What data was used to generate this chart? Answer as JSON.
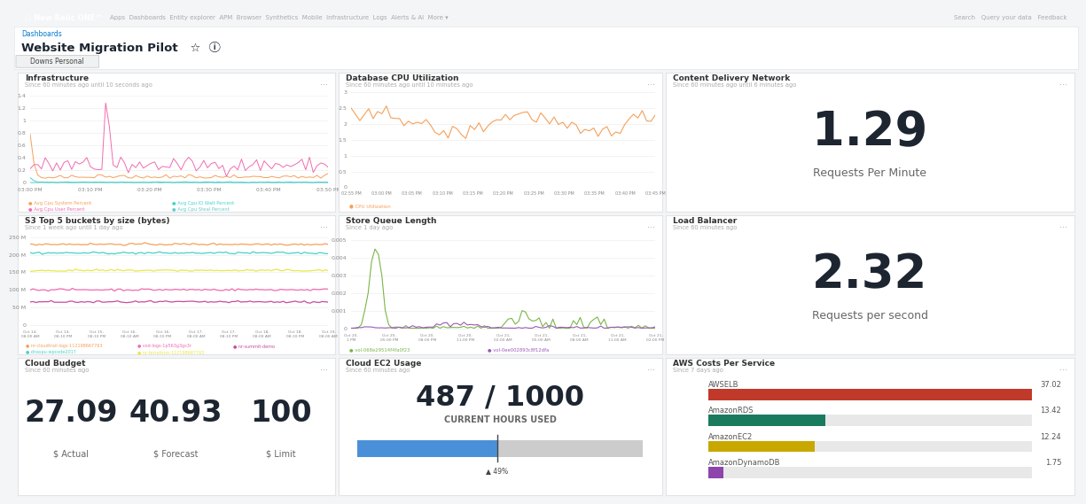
{
  "navbar_color": "#1c2b39",
  "panel_bg": "#ffffff",
  "panel_border": "#e3e4e6",
  "fig_bg": "#f4f5f7",
  "title": "Website Migration Pilot",
  "subtitle": "Downs Personal",
  "infra_title": "Infrastructure",
  "infra_subtitle": "Since 60 minutes ago until 10 seconds ago",
  "infra_xticks": [
    "03:00 PM",
    "03:10 PM",
    "03:20 PM",
    "03:30 PM",
    "03:40 PM",
    "03:50 PM"
  ],
  "infra_yticks": [
    "0",
    "0.2",
    "0.4",
    "0.6",
    "0.8",
    "1",
    "1.2",
    "1.4"
  ],
  "infra_legend": [
    "Avg Cpu System Percent",
    "Avg Cpu IO Wait Percent",
    "Avg Cpu User Percent",
    "Avg Cpu Steal Percent"
  ],
  "infra_colors": [
    "#f5a05a",
    "#44d4c8",
    "#f06cb0",
    "#66cccc"
  ],
  "db_title": "Database CPU Utilization",
  "db_subtitle": "Since 60 minutes ago until 10 minutes ago",
  "db_xticks": [
    "02:55 PM",
    "03:00 PM",
    "03:05 PM",
    "03:10 PM",
    "03:15 PM",
    "03:20 PM",
    "03:25 PM",
    "03:30 PM",
    "03:35 PM",
    "03:40 PM",
    "03:45 PM"
  ],
  "db_yticks": [
    "0",
    "0.5",
    "1",
    "1.5",
    "2",
    "2.5",
    "3"
  ],
  "db_color": "#f5a05a",
  "db_legend": "CPU Utilization",
  "cdn_title": "Content Delivery Network",
  "cdn_subtitle": "Since 60 minutes ago until 6 minutes ago",
  "cdn_value": "1.29",
  "cdn_label": "Requests Per Minute",
  "s3_title": "S3 Top 5 buckets by size (bytes)",
  "s3_subtitle": "Since 1 week ago until 1 day ago",
  "s3_xticks": [
    "Oct 14,\n08:00 AM",
    "Oct 14,\n08:10 PM",
    "Oct 15,\n08:10 PM",
    "Oct 16,\n08:10 AM",
    "Oct 16,\n08:10 PM",
    "Oct 17,\n08:00 AM",
    "Oct 17,\n08:10 PM",
    "Oct 18,\n08:00 AM",
    "Oct 18,\n08:10 PM",
    "Oct 19,\n08:00 AM"
  ],
  "s3_yticks": [
    "0",
    "50 M",
    "100 M",
    "150 M",
    "200 M",
    "250 M"
  ],
  "s3_colors": [
    "#f5a05a",
    "#44d4c8",
    "#f06cb0",
    "#e8e84a",
    "#c84b9e"
  ],
  "s3_legend": [
    "nr-cloudtrail-logs-112198667763",
    "dnaspu-wpcode2017",
    "vod-logs-1p563g3gs3r",
    "nr-terraform-112198667763",
    "nr-summit-demo"
  ],
  "s3_values": [
    230,
    205,
    100,
    155,
    65
  ],
  "sq_title": "Store Queue Length",
  "sq_subtitle": "Since 1 day ago",
  "sq_xticks": [
    "Oct 20,\n1 PM",
    "Oct 20,\n05:00 PM",
    "Oct 20,\n08:00 PM",
    "Oct 20,\n11:00 PM",
    "Oct 21,\n02:00 AM",
    "Oct 21,\n05:00 AM",
    "Oct 21,\n08:00 AM",
    "Oct 21,\n11:00 AM",
    "Oct 21,\n02:00 PM"
  ],
  "sq_yticks": [
    "0",
    "0.001",
    "0.002",
    "0.003",
    "0.004",
    "0.005"
  ],
  "sq_colors": [
    "#7ab648",
    "#9b59b6"
  ],
  "sq_legend": [
    "vol-068e29514f4fa0f23",
    "vol-0ee002893c8f12dfa"
  ],
  "lb_title": "Load Balancer",
  "lb_subtitle": "Since 60 minutes ago",
  "lb_value": "2.32",
  "lb_label": "Requests per second",
  "cb_title": "Cloud Budget",
  "cb_subtitle": "Since 60 minutes ago",
  "cb_actual": "27.09",
  "cb_actual_label": "$ Actual",
  "cb_forecast": "40.93",
  "cb_forecast_label": "$ Forecast",
  "cb_limit": "100",
  "cb_limit_label": "$ Limit",
  "ec2_title": "Cloud EC2 Usage",
  "ec2_subtitle": "Since 60 minutes ago",
  "ec2_value": "487 / 1000",
  "ec2_label": "CURRENT HOURS USED",
  "ec2_pct": 0.49,
  "ec2_bar_color": "#4a90d9",
  "ec2_bg_color": "#cccccc",
  "aws_title": "AWS Costs Per Service",
  "aws_subtitle": "Since 7 days ago",
  "aws_services": [
    "AWSELB",
    "AmazonRDS",
    "AmazonEC2",
    "AmazonDynamoDB"
  ],
  "aws_values": [
    37.02,
    13.42,
    12.24,
    1.75
  ],
  "aws_colors": [
    "#c0392b",
    "#1a7a5e",
    "#c8a800",
    "#8e44ad"
  ],
  "aws_max": 37.02
}
